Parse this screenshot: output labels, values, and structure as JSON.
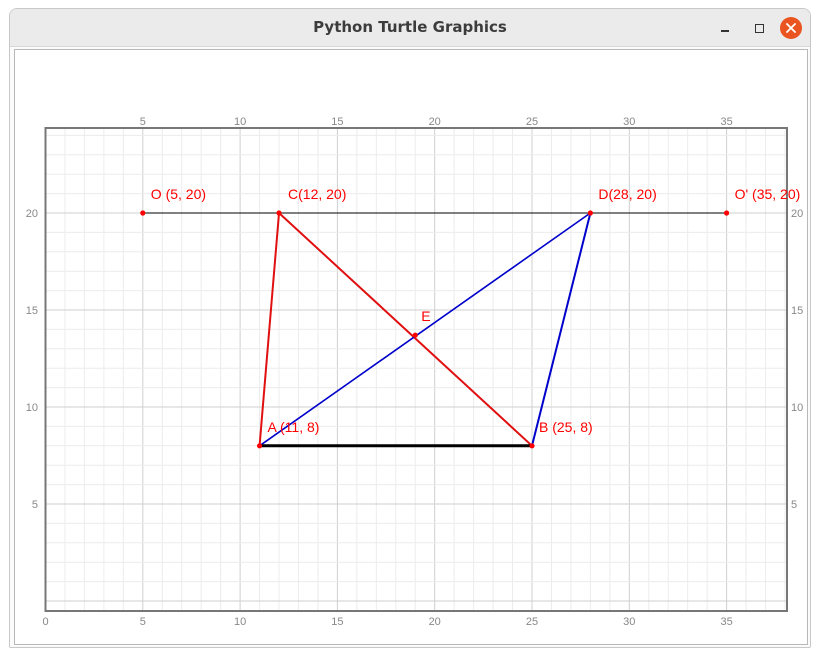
{
  "window": {
    "title": "Python Turtle Graphics"
  },
  "colors": {
    "titlebar_bg": "#ebebeb",
    "close_button": "#e95420",
    "grid_minor": "#ececec",
    "grid_major": "#cfcfcf",
    "axis_frame": "#777777",
    "tick_text": "#888888",
    "label_red": "#ff0000",
    "line_red": "#e01010",
    "line_blue": "#0000cc",
    "line_black": "#000000"
  },
  "axes": {
    "x_range": [
      0,
      38
    ],
    "y_range": [
      0,
      24.5
    ],
    "top_ticks": [
      "5",
      "10",
      "15",
      "20",
      "25",
      "30",
      "35"
    ],
    "bottom_ticks": [
      "0",
      "5",
      "10",
      "15",
      "20",
      "25",
      "30",
      "35"
    ],
    "left_ticks": [
      "5",
      "10",
      "15",
      "20"
    ],
    "right_ticks": [
      "5",
      "10",
      "15",
      "20"
    ]
  },
  "points": {
    "O": {
      "label": "O (5, 20)",
      "x": 5,
      "y": 20
    },
    "C": {
      "label": "C(12, 20)",
      "x": 12,
      "y": 20
    },
    "D": {
      "label": "D(28, 20)",
      "x": 28,
      "y": 20
    },
    "O2": {
      "label": "O' (35, 20)",
      "x": 35,
      "y": 20
    },
    "A": {
      "label": "A (11, 8)",
      "x": 11,
      "y": 8
    },
    "B": {
      "label": "B (25, 8)",
      "x": 25,
      "y": 8
    },
    "E": {
      "label": "E",
      "x": 19,
      "y": 13.7
    }
  },
  "segments": [
    {
      "name": "segment-o-o2",
      "from": "O",
      "to": "O2",
      "color": "#000000",
      "width": 1
    },
    {
      "name": "segment-a-c",
      "from": "A",
      "to": "C",
      "color": "#e01010",
      "width": 2
    },
    {
      "name": "segment-c-b",
      "from": "C",
      "to": "B",
      "color": "#e01010",
      "width": 2
    },
    {
      "name": "segment-a-d",
      "from": "A",
      "to": "D",
      "color": "#0000cc",
      "width": 1.6
    },
    {
      "name": "segment-d-b",
      "from": "D",
      "to": "B",
      "color": "#0000cc",
      "width": 2
    },
    {
      "name": "segment-a-b",
      "from": "A",
      "to": "B",
      "color": "#000000",
      "width": 3
    }
  ]
}
